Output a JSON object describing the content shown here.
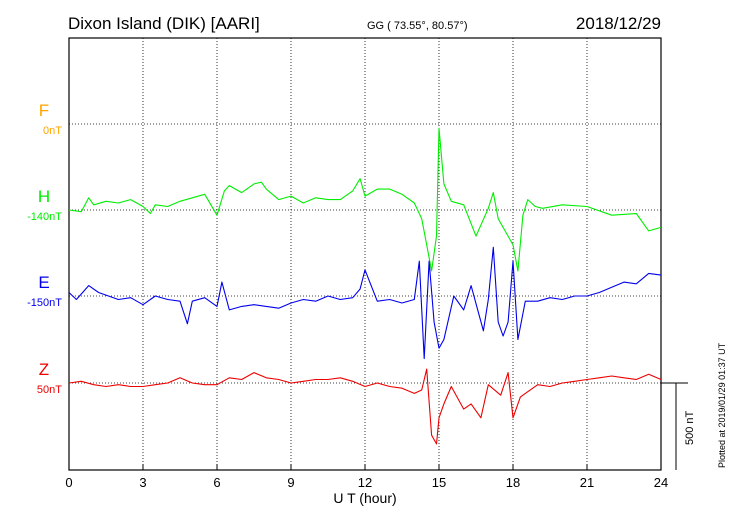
{
  "header": {
    "station": "Dixon Island (DIK)  [AARI]",
    "coords": "GG ( 73.55°,  80.57°)",
    "date": "2018/12/29"
  },
  "plotted_note": "Plotted at 2019/01/29 01:37 UT",
  "scale_label": "500 nT",
  "colors": {
    "F": "#ffa500",
    "H": "#00ee00",
    "E": "#0000ee",
    "Z": "#ee0000",
    "axis": "#000000"
  },
  "chart_data": {
    "type": "line",
    "title": "Dixon Island (DIK)  [AARI]",
    "xlabel": "U T (hour)",
    "xlim": [
      0,
      24
    ],
    "xticks": [
      0,
      3,
      6,
      9,
      12,
      15,
      18,
      21,
      24
    ],
    "grid": true,
    "scale_bar_nT": 500,
    "series": [
      {
        "name": "F",
        "baseline_label": "0nT",
        "x": [],
        "y": []
      },
      {
        "name": "H",
        "baseline_label": "-140nT",
        "x": [
          0,
          0.5,
          0.8,
          1,
          1.5,
          2,
          2.5,
          3,
          3.3,
          3.5,
          4,
          4.5,
          5,
          5.5,
          6,
          6.3,
          6.5,
          7,
          7.5,
          7.8,
          8,
          8.5,
          9,
          9.5,
          10,
          10.5,
          11,
          11.5,
          11.8,
          12,
          12.5,
          13,
          13.5,
          14,
          14.3,
          14.5,
          14.7,
          14.9,
          15,
          15.2,
          15.5,
          16,
          16.5,
          17,
          17.2,
          17.4,
          17.6,
          17.8,
          18,
          18.2,
          18.4,
          18.6,
          18.9,
          19.2,
          20,
          21,
          22,
          23,
          23.5,
          24
        ],
        "y": [
          0,
          -10,
          70,
          30,
          50,
          40,
          60,
          20,
          -20,
          30,
          20,
          50,
          70,
          90,
          -30,
          110,
          140,
          100,
          150,
          160,
          120,
          60,
          80,
          40,
          70,
          60,
          60,
          110,
          180,
          80,
          120,
          120,
          90,
          40,
          -50,
          -200,
          -350,
          -150,
          470,
          150,
          50,
          30,
          -150,
          10,
          100,
          -50,
          -100,
          -150,
          -200,
          -350,
          -30,
          60,
          20,
          10,
          30,
          20,
          -30,
          -20,
          -120,
          -100
        ]
      },
      {
        "name": "E",
        "baseline_label": "-150nT",
        "x": [
          0,
          0.3,
          0.8,
          1.2,
          1.6,
          2,
          2.5,
          3,
          3.5,
          4,
          4.5,
          4.8,
          5,
          5.5,
          6,
          6.2,
          6.5,
          7,
          7.5,
          8,
          8.5,
          9,
          9.5,
          10,
          10.5,
          11,
          11.5,
          11.8,
          12,
          12.5,
          13,
          13.5,
          14,
          14.2,
          14.4,
          14.6,
          14.8,
          15,
          15.2,
          15.6,
          16,
          16.3,
          16.8,
          17,
          17.2,
          17.4,
          17.6,
          17.8,
          18,
          18.2,
          18.5,
          19,
          19.5,
          20,
          20.5,
          21,
          21.5,
          22,
          22.5,
          23,
          23.5,
          24
        ],
        "y": [
          20,
          -20,
          60,
          20,
          0,
          -20,
          -10,
          -50,
          0,
          -20,
          -30,
          -160,
          -30,
          -10,
          -60,
          80,
          -80,
          -60,
          -50,
          -60,
          -70,
          -40,
          -20,
          -30,
          0,
          -20,
          -10,
          40,
          150,
          -30,
          -20,
          -40,
          -20,
          200,
          -360,
          200,
          -150,
          -300,
          -250,
          0,
          -80,
          60,
          -200,
          -20,
          280,
          -150,
          -230,
          -150,
          200,
          -250,
          -30,
          -30,
          -10,
          -20,
          0,
          0,
          20,
          50,
          80,
          70,
          130,
          120
        ]
      },
      {
        "name": "Z",
        "baseline_label": "50nT",
        "x": [
          0,
          0.5,
          1,
          1.5,
          2,
          2.5,
          3,
          3.5,
          4,
          4.5,
          5,
          5.5,
          6,
          6.5,
          7,
          7.5,
          8,
          8.5,
          9,
          9.5,
          10,
          10.5,
          11,
          11.5,
          12,
          12.5,
          13,
          13.5,
          14,
          14.3,
          14.5,
          14.7,
          14.9,
          15,
          15.2,
          15.5,
          16,
          16.3,
          16.7,
          17,
          17.5,
          17.8,
          18,
          18.3,
          18.6,
          19,
          19.5,
          20,
          20.5,
          21,
          21.5,
          22,
          22.5,
          23,
          23.5,
          24
        ],
        "y": [
          0,
          10,
          -10,
          -20,
          -10,
          -20,
          -20,
          -10,
          0,
          30,
          0,
          -10,
          -10,
          30,
          20,
          60,
          30,
          20,
          0,
          10,
          20,
          20,
          30,
          10,
          -20,
          0,
          -20,
          -30,
          -60,
          -40,
          80,
          -300,
          -350,
          -200,
          -120,
          -20,
          -150,
          -120,
          -200,
          -10,
          -70,
          60,
          -200,
          -80,
          -50,
          -10,
          -20,
          0,
          10,
          20,
          30,
          40,
          30,
          20,
          50,
          20
        ]
      }
    ]
  }
}
